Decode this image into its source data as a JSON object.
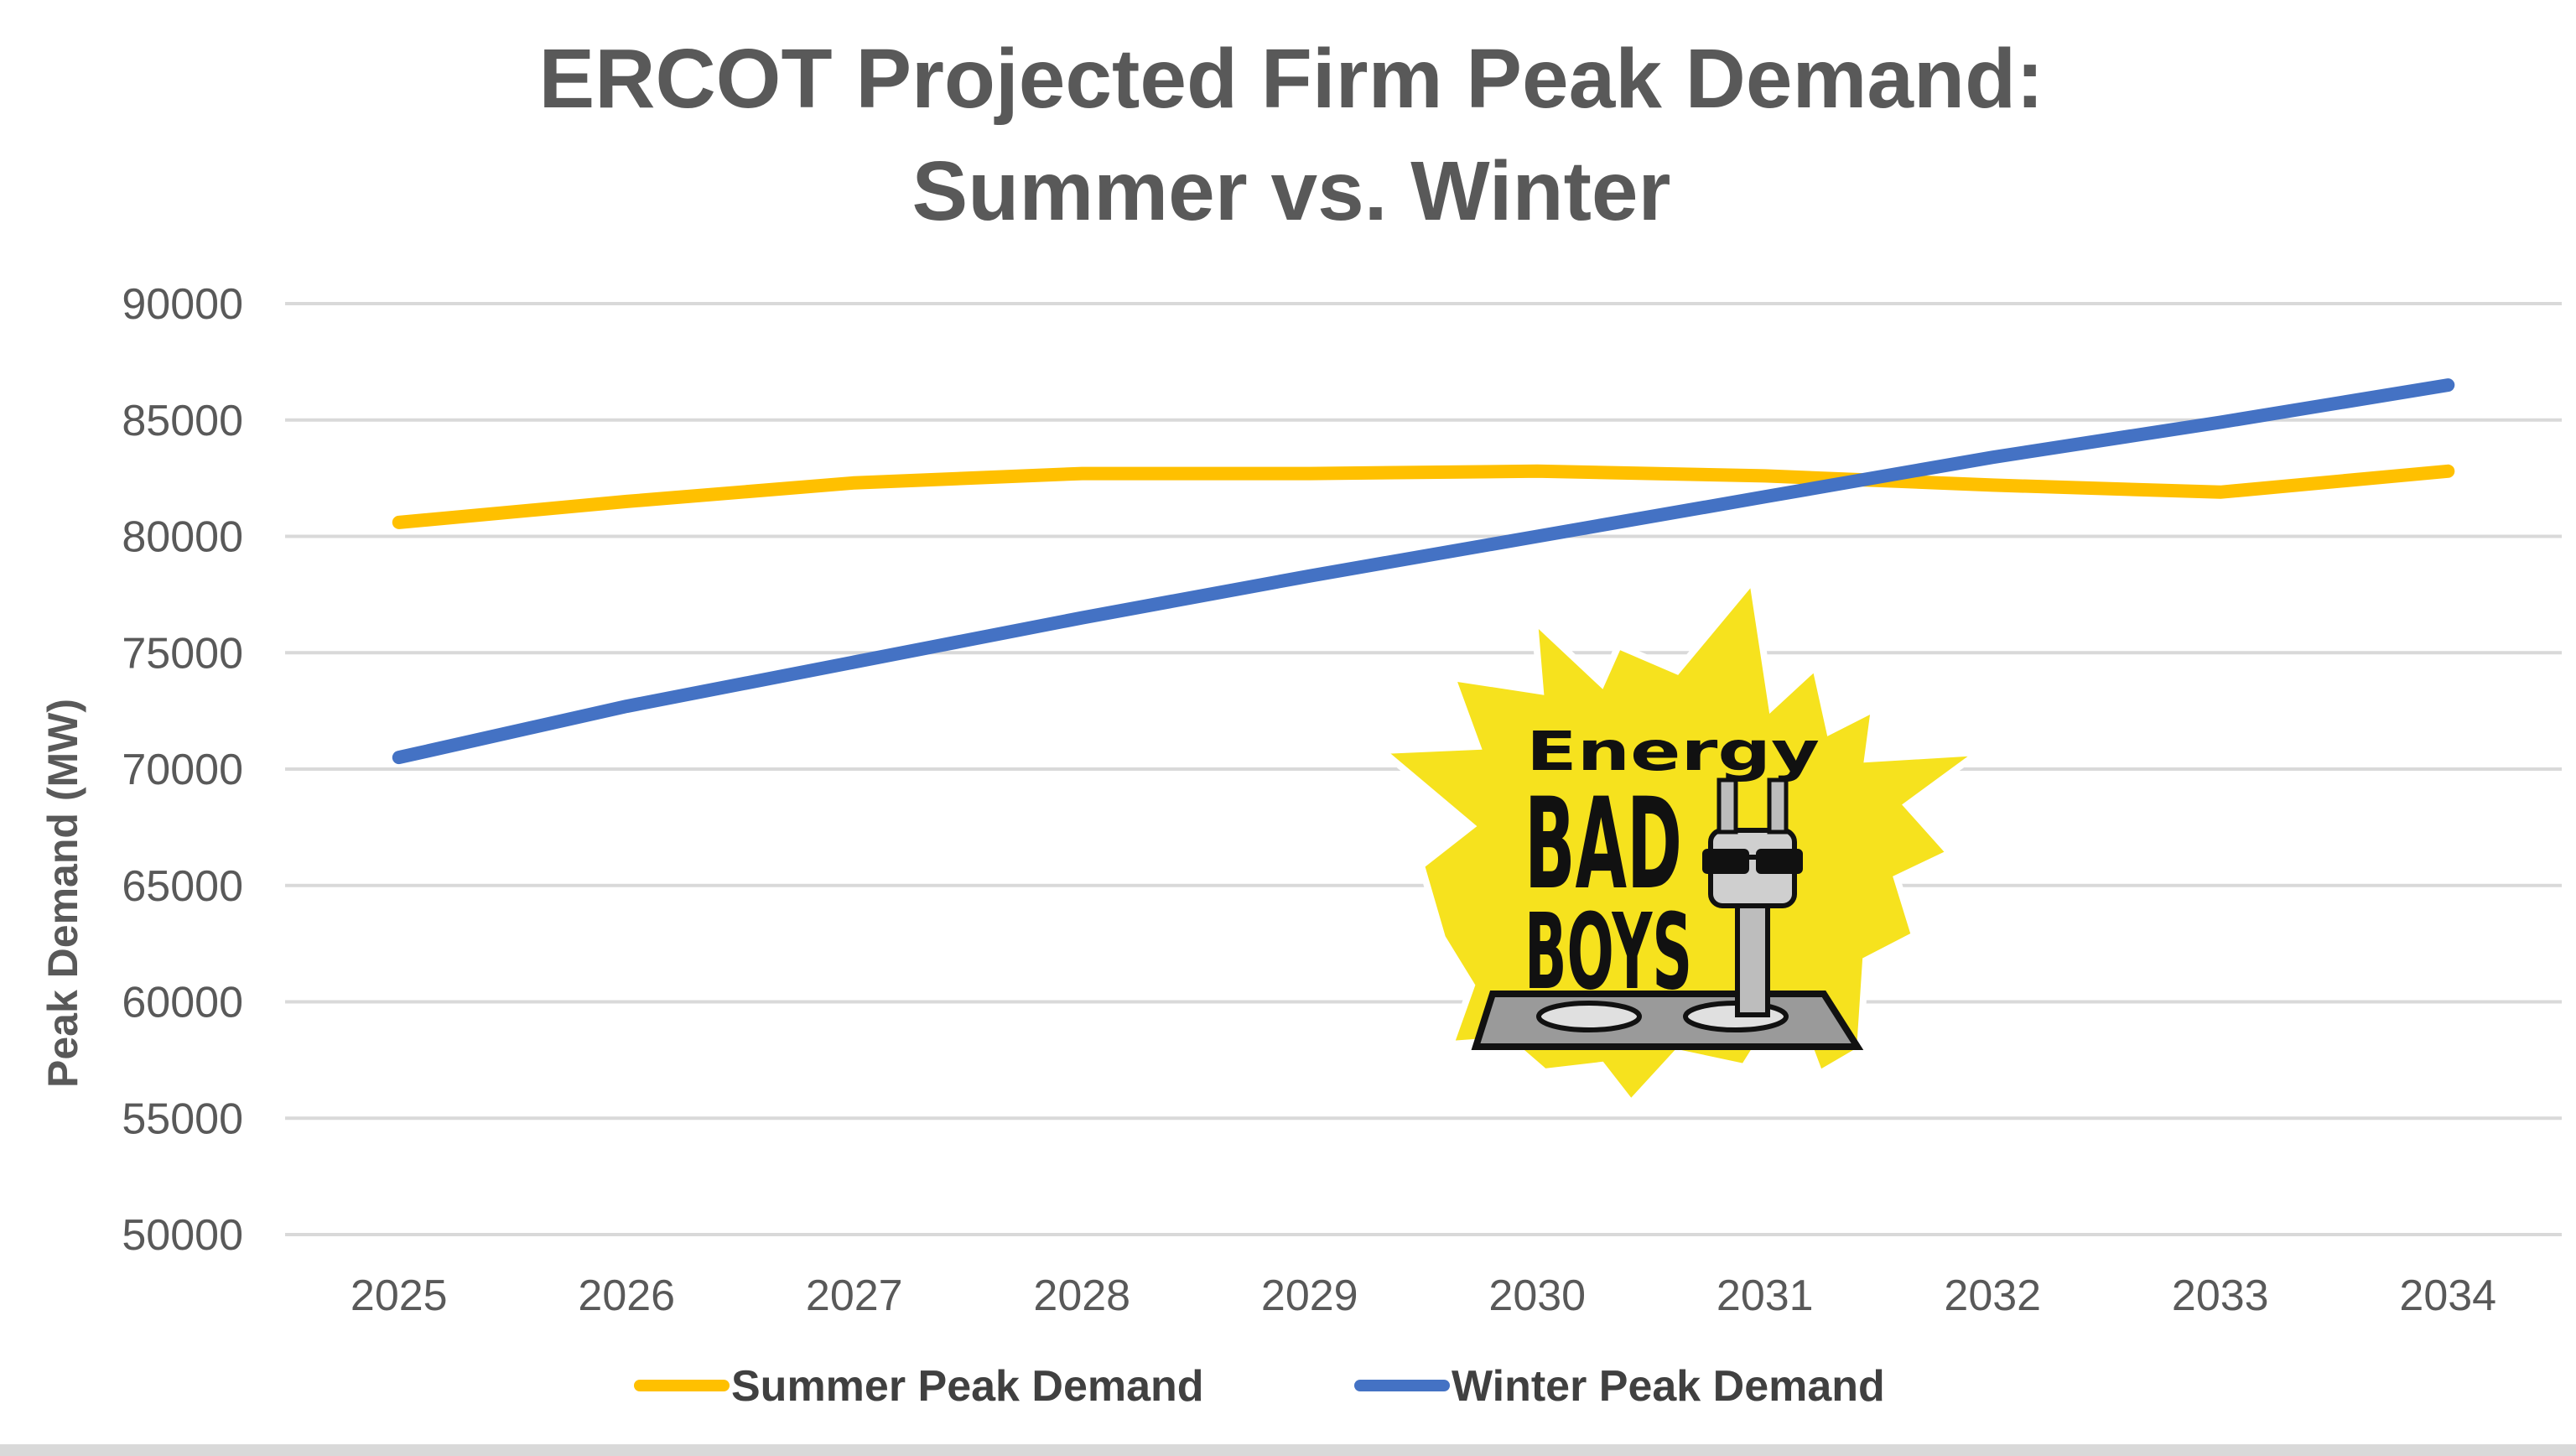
{
  "chart_data": {
    "type": "line",
    "title_lines": [
      "ERCOT Projected Firm Peak Demand:",
      "Summer vs. Winter"
    ],
    "xlabel": "",
    "ylabel": "Peak Demand (MW)",
    "categories": [
      "2025",
      "2026",
      "2027",
      "2028",
      "2029",
      "2030",
      "2031",
      "2032",
      "2033",
      "2034"
    ],
    "ylim": [
      50000,
      90000
    ],
    "yticks": [
      "90000",
      "85000",
      "80000",
      "75000",
      "70000",
      "65000",
      "60000",
      "55000",
      "50000"
    ],
    "grid": true,
    "legend_position": "bottom",
    "series": [
      {
        "name": "Summer Peak Demand",
        "color": "#FFC000",
        "values": [
          80600,
          81500,
          82300,
          82700,
          82700,
          82800,
          82600,
          82200,
          81900,
          82800
        ]
      },
      {
        "name": "Winter Peak Demand",
        "color": "#4472C4",
        "values": [
          70500,
          72700,
          74600,
          76500,
          78300,
          80000,
          81700,
          83400,
          84900,
          86500
        ]
      }
    ]
  },
  "logo": {
    "word_top": "Energy",
    "word_mid": "BAD",
    "word_bottom": "BOYS",
    "icon": "starburst-plug-logo",
    "colors": {
      "burst": "#F6E21E",
      "ink": "#111111",
      "outlet": "#9a9a9a"
    }
  }
}
